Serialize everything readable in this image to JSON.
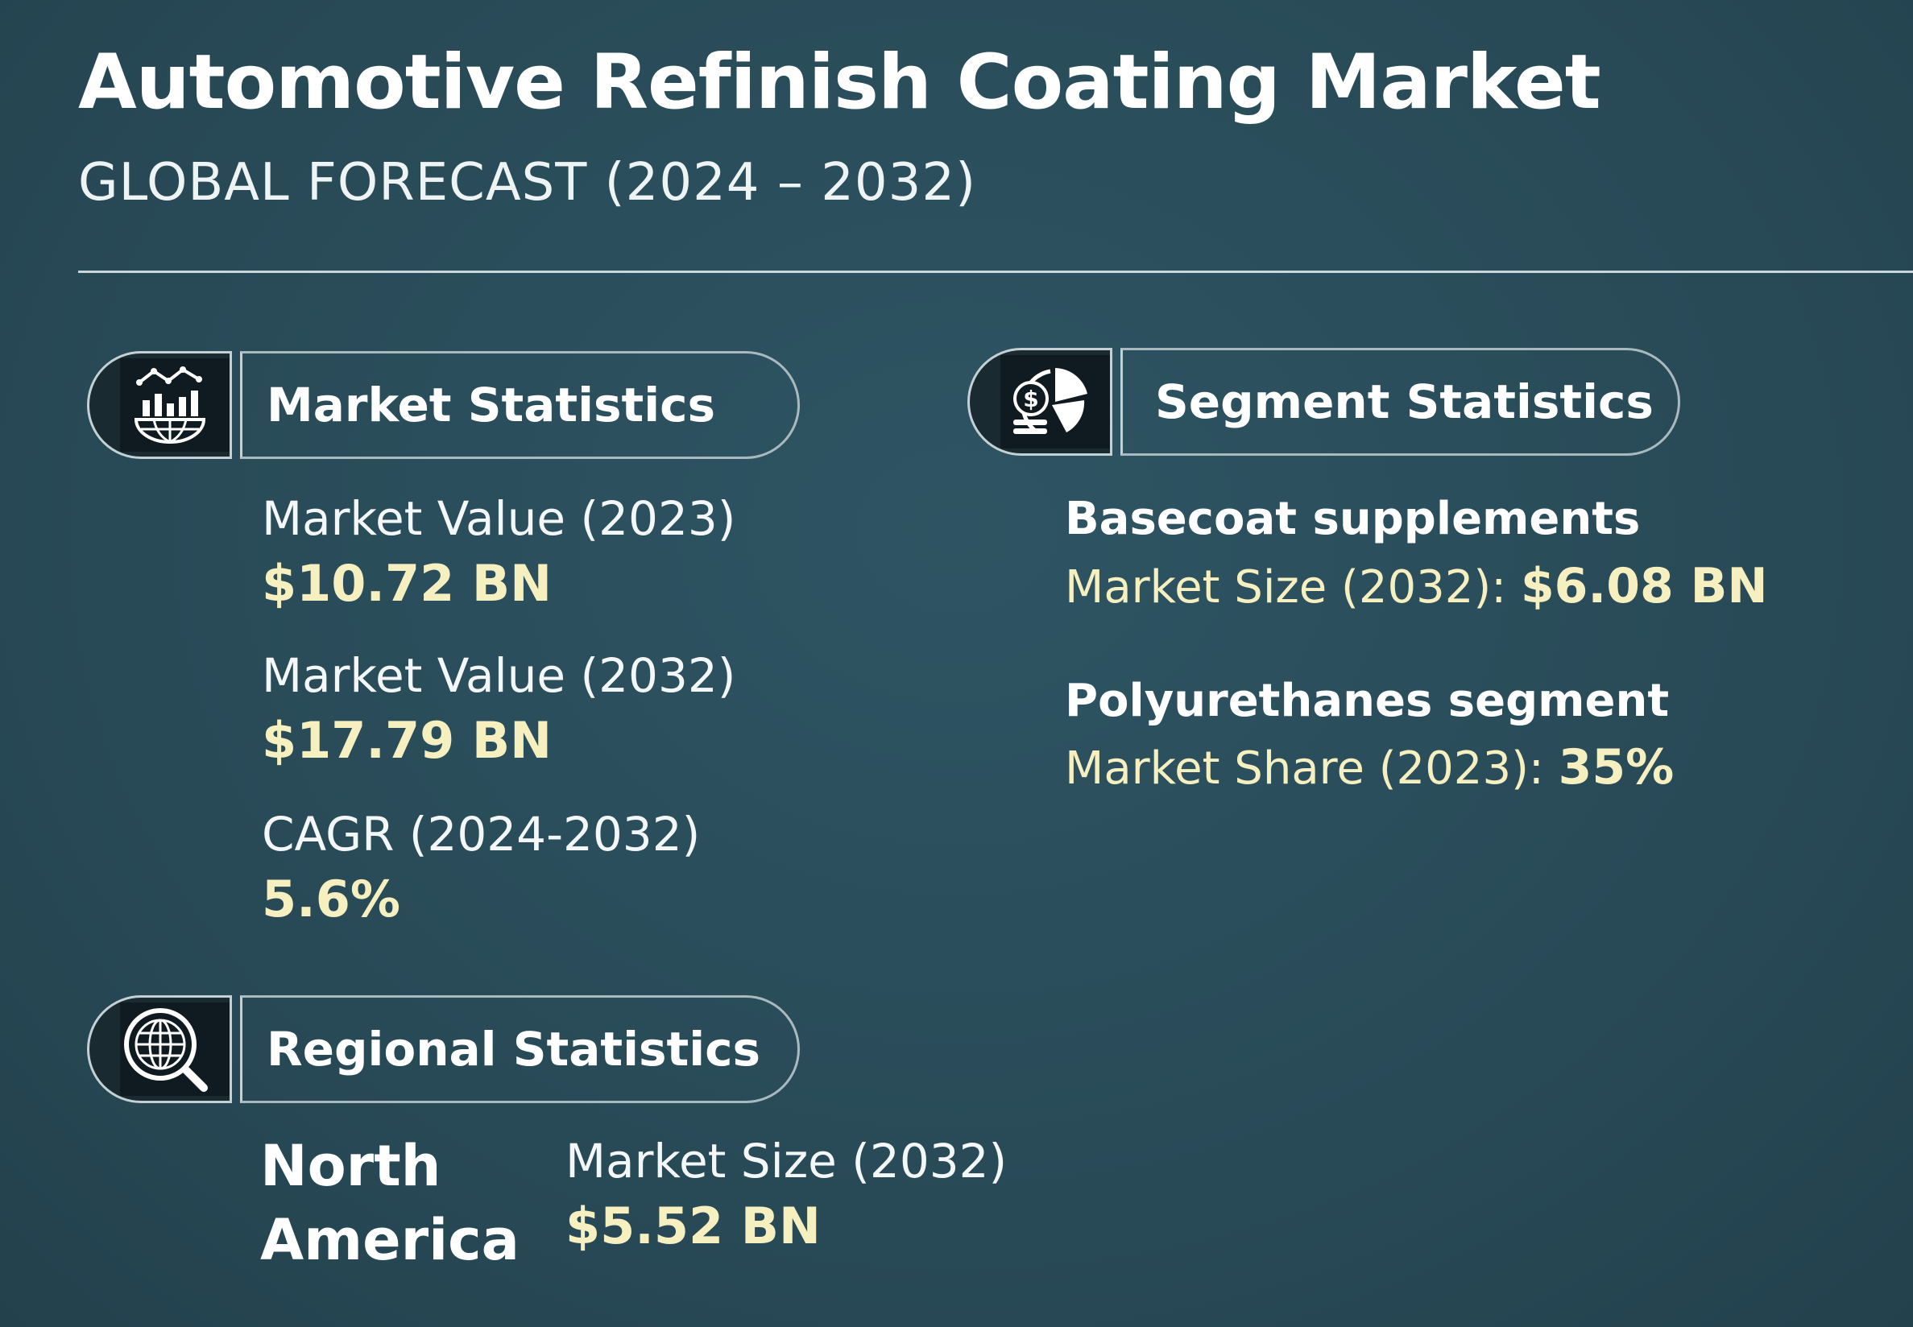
{
  "header": {
    "title": "Automotive Refinish Coating Market",
    "subtitle": "GLOBAL FORECAST (2024 – 2032)"
  },
  "market_statistics": {
    "heading": "Market Statistics",
    "icon": "bar-chart-globe-icon",
    "items": [
      {
        "label": "Market Value (2023)",
        "value": "$10.72 BN"
      },
      {
        "label": "Market Value (2032)",
        "value": "$17.79 BN"
      },
      {
        "label": "CAGR (2024-2032)",
        "value": "5.6%"
      }
    ]
  },
  "segment_statistics": {
    "heading": "Segment Statistics",
    "icon": "coin-pie-chart-icon",
    "items": [
      {
        "name": "Basecoat supplements",
        "label": "Market Size (2032): ",
        "value": "$6.08 BN"
      },
      {
        "name": "Polyurethanes segment",
        "label": "Market Share (2023): ",
        "value": "35%"
      }
    ]
  },
  "regional_statistics": {
    "heading": "Regional Statistics",
    "icon": "globe-magnifier-icon",
    "region_line1": "North",
    "region_line2": "America",
    "label": "Market Size (2032)",
    "value": "$5.52 BN"
  },
  "colors": {
    "background": "#294b58",
    "value_highlight": "#f6efbf",
    "text": "#ffffff"
  }
}
